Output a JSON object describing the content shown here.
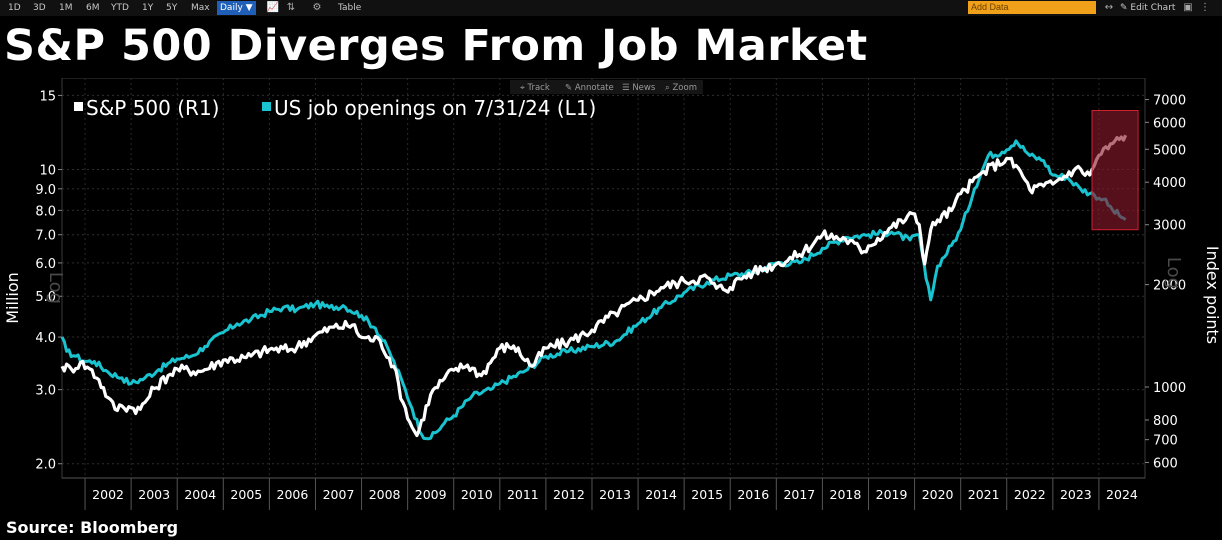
{
  "toolbar": {
    "ranges": [
      "1D",
      "3D",
      "1M",
      "6M",
      "YTD",
      "1Y",
      "5Y",
      "Max"
    ],
    "period": "Daily ▼",
    "table_label": "Table",
    "add_data_placeholder": "Add Data",
    "edit_chart_label": "✎ Edit Chart"
  },
  "chart_tools": [
    "Track",
    "Annotate",
    "News",
    "Zoom"
  ],
  "title": "S&P 500 Diverges From Job Market",
  "source": "Source: Bloomberg",
  "colors": {
    "sp500": "#ffffff",
    "job_openings": "#19c3cf",
    "highlight": "#8b1a2b",
    "background": "#000000"
  },
  "chart_data": {
    "type": "line",
    "title": "S&P 500 Diverges From Job Market",
    "x_ticks": [
      "2002",
      "2003",
      "2004",
      "2005",
      "2006",
      "2007",
      "2008",
      "2009",
      "2010",
      "2011",
      "2012",
      "2013",
      "2014",
      "2015",
      "2016",
      "2017",
      "2018",
      "2019",
      "2020",
      "2021",
      "2022",
      "2023",
      "2024"
    ],
    "xlim": [
      2001.5,
      2025.0
    ],
    "left_axis": {
      "label": "Million",
      "scale_note": "Log",
      "scale": "log",
      "ticks": [
        "2.0",
        "3.0",
        "4.0",
        "5.0",
        "6.0",
        "7.0",
        "8.0",
        "9.0",
        "10",
        "15"
      ],
      "range": [
        1.85,
        16.5
      ]
    },
    "right_axis": {
      "label": "Index points",
      "scale_note": "Log",
      "scale": "log",
      "ticks": [
        "600",
        "700",
        "800",
        "1000",
        "2000",
        "3000",
        "4000",
        "5000",
        "6000",
        "7000"
      ],
      "range": [
        540,
        8100
      ]
    },
    "legend": {
      "placement": "top-left"
    },
    "series": [
      {
        "name": "S&P 500 (R1)",
        "axis": "right",
        "x": [
          2001.5,
          2001.7,
          2001.9,
          2002.1,
          2002.3,
          2002.5,
          2002.65,
          2002.8,
          2003.0,
          2003.2,
          2003.5,
          2003.8,
          2004.0,
          2004.5,
          2005.0,
          2005.5,
          2006.0,
          2006.5,
          2007.0,
          2007.4,
          2007.8,
          2008.0,
          2008.4,
          2008.7,
          2008.9,
          2009.1,
          2009.2,
          2009.5,
          2009.8,
          2010.0,
          2010.3,
          2010.6,
          2011.0,
          2011.3,
          2011.7,
          2012.0,
          2012.5,
          2013.0,
          2013.5,
          2014.0,
          2014.5,
          2015.0,
          2015.5,
          2015.7,
          2016.0,
          2016.2,
          2016.5,
          2017.0,
          2017.5,
          2018.0,
          2018.5,
          2018.9,
          2019.0,
          2019.5,
          2020.0,
          2020.1,
          2020.22,
          2020.35,
          2020.5,
          2020.8,
          2021.0,
          2021.5,
          2022.0,
          2022.3,
          2022.5,
          2022.8,
          2023.0,
          2023.5,
          2023.8,
          2024.0,
          2024.3,
          2024.58
        ],
        "values": [
          1150,
          1130,
          1180,
          1130,
          1050,
          930,
          860,
          880,
          870,
          860,
          990,
          1080,
          1130,
          1110,
          1200,
          1220,
          1290,
          1290,
          1420,
          1500,
          1520,
          1400,
          1370,
          1150,
          900,
          760,
          720,
          950,
          1060,
          1120,
          1160,
          1080,
          1300,
          1320,
          1150,
          1300,
          1360,
          1470,
          1650,
          1800,
          1960,
          2050,
          2100,
          1950,
          1960,
          2080,
          2180,
          2300,
          2450,
          2800,
          2720,
          2500,
          2600,
          2950,
          3230,
          3000,
          2300,
          2900,
          3100,
          3300,
          3700,
          4300,
          4700,
          4300,
          3800,
          3900,
          3950,
          4400,
          4200,
          4800,
          5200,
          5500
        ]
      },
      {
        "name": "US job openings on 7/31/24 (L1)",
        "axis": "left",
        "x": [
          2001.5,
          2001.6,
          2001.8,
          2002.0,
          2002.2,
          2002.5,
          2002.8,
          2003.0,
          2003.3,
          2003.6,
          2004.0,
          2004.3,
          2004.6,
          2005.0,
          2005.3,
          2005.6,
          2006.0,
          2006.3,
          2006.6,
          2007.0,
          2007.3,
          2007.6,
          2008.0,
          2008.3,
          2008.6,
          2008.9,
          2009.1,
          2009.3,
          2009.5,
          2009.8,
          2010.0,
          2010.4,
          2010.8,
          2011.0,
          2011.5,
          2012.0,
          2012.5,
          2013.0,
          2013.5,
          2014.0,
          2014.5,
          2015.0,
          2015.5,
          2016.0,
          2016.5,
          2017.0,
          2017.5,
          2018.0,
          2018.5,
          2019.0,
          2019.5,
          2019.9,
          2020.1,
          2020.25,
          2020.35,
          2020.5,
          2020.8,
          2021.0,
          2021.3,
          2021.6,
          2021.9,
          2022.2,
          2022.5,
          2022.8,
          2023.0,
          2023.3,
          2023.6,
          2023.9,
          2024.1,
          2024.3,
          2024.58
        ],
        "values": [
          4.0,
          3.7,
          3.6,
          3.5,
          3.5,
          3.3,
          3.2,
          3.1,
          3.2,
          3.35,
          3.55,
          3.6,
          3.8,
          4.1,
          4.3,
          4.4,
          4.6,
          4.7,
          4.65,
          4.8,
          4.7,
          4.75,
          4.5,
          4.2,
          3.7,
          3.1,
          2.7,
          2.35,
          2.3,
          2.5,
          2.6,
          2.9,
          3.0,
          3.1,
          3.3,
          3.6,
          3.7,
          3.8,
          3.9,
          4.3,
          4.7,
          5.1,
          5.4,
          5.6,
          5.7,
          6.0,
          6.0,
          6.5,
          6.9,
          7.0,
          7.1,
          6.8,
          7.0,
          5.5,
          4.9,
          5.9,
          6.6,
          7.2,
          9.0,
          10.8,
          11.0,
          11.7,
          10.8,
          10.5,
          9.7,
          9.6,
          9.0,
          8.7,
          8.5,
          8.0,
          7.6
        ]
      }
    ],
    "highlight_region": {
      "x": [
        2023.85,
        2024.85
      ]
    }
  }
}
